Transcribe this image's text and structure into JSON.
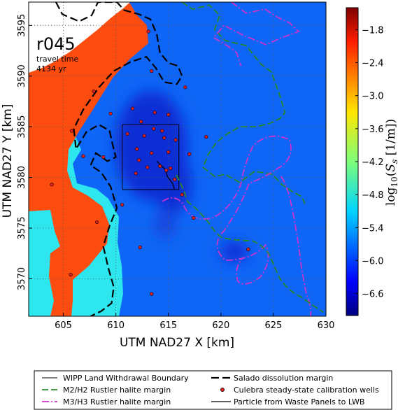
{
  "chart_data": {
    "type": "heatmap",
    "run_id": "r045",
    "annotation_line1": "travel time",
    "annotation_line2": "4134 yr",
    "xlabel": "UTM NAD27 X [km]",
    "ylabel": "UTM NAD27 Y [km]",
    "xlim": [
      601.7,
      630.0
    ],
    "ylim": [
      3566.3,
      3597.3
    ],
    "xticks": [
      605,
      610,
      615,
      620,
      625,
      630
    ],
    "yticks": [
      3570,
      3575,
      3580,
      3585,
      3590,
      3595
    ],
    "grid": true,
    "colorbar": {
      "label": "log10(Ss [1/m])",
      "range": [
        -7.0,
        -1.4
      ],
      "ticks": [
        "−1.8",
        "−2.4",
        "−3.0",
        "−3.6",
        "−4.2",
        "−4.8",
        "−5.4",
        "−6.0",
        "−6.6"
      ],
      "tick_values": [
        -1.8,
        -2.4,
        -3.0,
        -3.6,
        -4.2,
        -4.8,
        -5.4,
        -6.0,
        -6.6
      ]
    },
    "field_levels": {
      "orange_region": -2.2,
      "cyan_band": -4.95,
      "background": -5.8,
      "low_patches": -6.4
    },
    "wipp_boundary_box": {
      "x": [
        610.6,
        616.0
      ],
      "y": [
        3578.8,
        3585.2
      ]
    },
    "calibration_wells": [
      [
        613.1,
        3594.4
      ],
      [
        613.4,
        3590.5
      ],
      [
        616.6,
        3588.9
      ],
      [
        607.9,
        3588.5
      ],
      [
        609.5,
        3586.3
      ],
      [
        611.6,
        3586.8
      ],
      [
        613.7,
        3586.4
      ],
      [
        615.0,
        3586.2
      ],
      [
        612.4,
        3585.5
      ],
      [
        613.6,
        3584.8
      ],
      [
        614.4,
        3584.6
      ],
      [
        611.1,
        3584.3
      ],
      [
        612.7,
        3584.1
      ],
      [
        614.6,
        3583.9
      ],
      [
        615.7,
        3583.7
      ],
      [
        618.6,
        3584.0
      ],
      [
        605.8,
        3584.6
      ],
      [
        606.9,
        3582.1
      ],
      [
        608.8,
        3582.0
      ],
      [
        612.0,
        3582.8
      ],
      [
        613.4,
        3582.4
      ],
      [
        615.0,
        3582.5
      ],
      [
        617.0,
        3582.3
      ],
      [
        612.2,
        3581.7
      ],
      [
        613.0,
        3581.0
      ],
      [
        614.2,
        3581.1
      ],
      [
        615.2,
        3580.9
      ],
      [
        611.9,
        3580.4
      ],
      [
        614.8,
        3580.7
      ],
      [
        615.6,
        3579.8
      ],
      [
        603.9,
        3579.3
      ],
      [
        616.3,
        3578.3
      ],
      [
        610.6,
        3577.3
      ],
      [
        617.4,
        3576.0
      ],
      [
        608.2,
        3575.6
      ],
      [
        612.3,
        3573.1
      ],
      [
        622.6,
        3572.9
      ],
      [
        605.7,
        3570.4
      ],
      [
        613.4,
        3568.5
      ]
    ],
    "particle_path": [
      [
        613.9,
        3581.6
      ],
      [
        614.3,
        3581.2
      ],
      [
        614.7,
        3580.8
      ],
      [
        614.9,
        3580.1
      ],
      [
        615.4,
        3579.4
      ],
      [
        615.6,
        3578.8
      ]
    ],
    "salado_margin": [
      [
        604.3,
        3597.3
      ],
      [
        604.9,
        3596.1
      ],
      [
        606.5,
        3595.4
      ],
      [
        607.7,
        3596.0
      ],
      [
        608.3,
        3597.3
      ],
      [
        610.1,
        3597.3
      ],
      [
        610.8,
        3596.5
      ],
      [
        612.2,
        3596.1
      ],
      [
        613.3,
        3595.6
      ],
      [
        613.9,
        3594.1
      ],
      [
        614.2,
        3592.3
      ],
      [
        615.0,
        3591.3
      ],
      [
        615.9,
        3591.0
      ],
      [
        616.3,
        3590.0
      ],
      [
        615.8,
        3589.2
      ],
      [
        614.6,
        3589.4
      ],
      [
        613.8,
        3590.8
      ],
      [
        612.9,
        3591.9
      ],
      [
        611.4,
        3591.4
      ],
      [
        609.8,
        3590.5
      ],
      [
        608.4,
        3588.9
      ],
      [
        606.9,
        3586.7
      ],
      [
        606.0,
        3584.8
      ],
      [
        606.2,
        3582.8
      ],
      [
        607.2,
        3584.5
      ],
      [
        608.4,
        3585.2
      ],
      [
        609.4,
        3584.6
      ],
      [
        609.7,
        3583.2
      ],
      [
        610.0,
        3582.0
      ],
      [
        609.2,
        3581.6
      ],
      [
        608.1,
        3582.4
      ],
      [
        607.6,
        3581.2
      ],
      [
        608.6,
        3580.5
      ],
      [
        609.5,
        3579.1
      ],
      [
        610.1,
        3577.0
      ],
      [
        609.4,
        3575.2
      ],
      [
        608.8,
        3573.2
      ],
      [
        609.3,
        3571.0
      ],
      [
        609.8,
        3569.2
      ],
      [
        609.6,
        3567.6
      ],
      [
        608.6,
        3566.8
      ],
      [
        607.6,
        3566.3
      ]
    ],
    "m2_h2_margin": [
      [
        616.3,
        3597.3
      ],
      [
        617.3,
        3596.6
      ],
      [
        618.9,
        3597.0
      ],
      [
        619.9,
        3596.0
      ],
      [
        619.4,
        3594.6
      ],
      [
        620.4,
        3593.5
      ],
      [
        622.4,
        3593.0
      ],
      [
        623.8,
        3591.2
      ],
      [
        624.8,
        3590.4
      ],
      [
        625.6,
        3588.1
      ],
      [
        626.1,
        3586.4
      ],
      [
        625.6,
        3585.8
      ],
      [
        624.6,
        3585.3
      ],
      [
        623.3,
        3585.0
      ],
      [
        621.8,
        3585.0
      ],
      [
        620.6,
        3584.3
      ],
      [
        619.6,
        3583.5
      ],
      [
        618.8,
        3582.3
      ],
      [
        618.3,
        3581.0
      ],
      [
        619.4,
        3580.1
      ],
      [
        620.4,
        3580.3
      ],
      [
        621.8,
        3579.5
      ],
      [
        623.2,
        3580.6
      ],
      [
        624.9,
        3580.3
      ],
      [
        625.8,
        3579.3
      ],
      [
        626.8,
        3578.6
      ],
      [
        627.7,
        3578.1
      ],
      [
        628.0,
        3577.4
      ]
    ],
    "m3_h3_margin": [
      [
        621.0,
        3597.3
      ],
      [
        622.4,
        3596.2
      ],
      [
        624.2,
        3596.6
      ],
      [
        625.4,
        3595.8
      ],
      [
        626.6,
        3595.2
      ],
      [
        627.4,
        3594.4
      ],
      [
        625.8,
        3593.8
      ],
      [
        624.3,
        3593.1
      ],
      [
        622.2,
        3594.0
      ],
      [
        620.3,
        3595.0
      ],
      [
        619.3,
        3593.8
      ],
      [
        620.6,
        3593.0
      ],
      [
        621.5,
        3592.3
      ],
      [
        621.9,
        3591.0
      ]
    ],
    "legend": [
      {
        "label": "WIPP Land Withdrawal Boundary"
      },
      {
        "label": "Salado dissolution margin"
      },
      {
        "label": "M2/H2 Rustler halite margin"
      },
      {
        "label": "Culebra steady-state calibration wells"
      },
      {
        "label": "M3/H3 Rustler halite margin"
      },
      {
        "label": "Particle from Waste Panels to LWB"
      }
    ],
    "colors": {
      "orange": "#fc4c10",
      "cyan": "#2de6ee",
      "background_blue": "#0f66f6",
      "low_blue": "#0b2fd4",
      "salado": "#000000",
      "m2h2": "#2a8a2a",
      "m3h3": "#cc33cc",
      "well_fill": "#e02020"
    }
  }
}
